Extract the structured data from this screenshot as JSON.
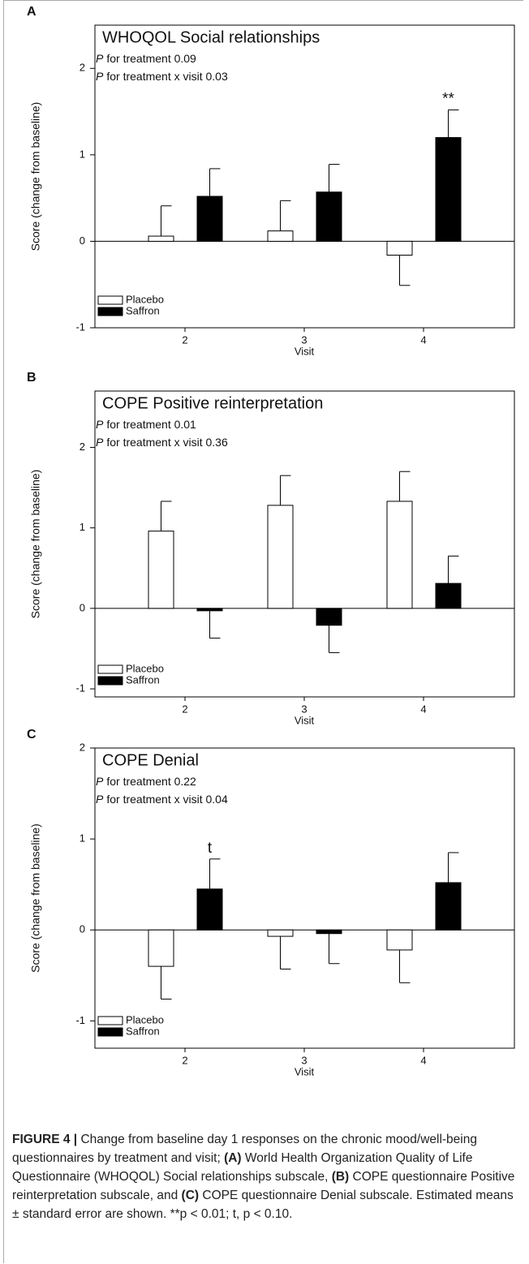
{
  "chart_data": [
    {
      "type": "bar",
      "panel": "A",
      "title": "WHOQOL Social relationships",
      "annotations": [
        {
          "symbol": "P",
          "text": "for treatment 0.09"
        },
        {
          "symbol": "P",
          "text": "for treatment x visit 0.03"
        }
      ],
      "categories": [
        "2",
        "3",
        "4"
      ],
      "x_label": "Visit",
      "y_label": "Score (change from baseline)",
      "ylim": [
        -1,
        2.5
      ],
      "yticks": [
        -1,
        0,
        1,
        2
      ],
      "legend": "lower left",
      "series": [
        {
          "name": "Placebo",
          "color": "#ffffff",
          "values": [
            0.06,
            0.12,
            -0.16
          ],
          "errors": [
            0.35,
            0.35,
            0.35
          ],
          "significance": [
            null,
            null,
            null
          ]
        },
        {
          "name": "Saffron",
          "color": "#000000",
          "values": [
            0.52,
            0.57,
            1.2
          ],
          "errors": [
            0.32,
            0.32,
            0.32
          ],
          "significance": [
            null,
            null,
            "**"
          ]
        }
      ]
    },
    {
      "type": "bar",
      "panel": "B",
      "title": "COPE Positive reinterpretation",
      "annotations": [
        {
          "symbol": "P",
          "text": "for treatment 0.01"
        },
        {
          "symbol": "P",
          "text": "for treatment x visit 0.36"
        }
      ],
      "categories": [
        "2",
        "3",
        "4"
      ],
      "x_label": "Visit",
      "y_label": "Score (change from baseline)",
      "ylim": [
        -1.1,
        2.7
      ],
      "yticks": [
        -1,
        0,
        1,
        2
      ],
      "legend": "lower left",
      "series": [
        {
          "name": "Placebo",
          "color": "#ffffff",
          "values": [
            0.96,
            1.28,
            1.33
          ],
          "errors": [
            0.37,
            0.37,
            0.37
          ],
          "significance": [
            null,
            null,
            null
          ]
        },
        {
          "name": "Saffron",
          "color": "#000000",
          "values": [
            -0.03,
            -0.21,
            0.31
          ],
          "errors": [
            0.34,
            0.34,
            0.34
          ],
          "significance": [
            null,
            null,
            null
          ]
        }
      ]
    },
    {
      "type": "bar",
      "panel": "C",
      "title": "COPE Denial",
      "annotations": [
        {
          "symbol": "P",
          "text": "for treatment 0.22"
        },
        {
          "symbol": "P",
          "text": "for treatment x visit 0.04"
        }
      ],
      "categories": [
        "2",
        "3",
        "4"
      ],
      "x_label": "Visit",
      "y_label": "Score (change from baseline)",
      "ylim": [
        -1.3,
        2
      ],
      "yticks": [
        -1,
        0,
        1,
        2
      ],
      "legend": "lower left",
      "series": [
        {
          "name": "Placebo",
          "color": "#ffffff",
          "values": [
            -0.4,
            -0.07,
            -0.22
          ],
          "errors": [
            0.36,
            0.36,
            0.36
          ],
          "significance": [
            null,
            null,
            null
          ]
        },
        {
          "name": "Saffron",
          "color": "#000000",
          "values": [
            0.45,
            -0.04,
            0.52
          ],
          "errors": [
            0.33,
            0.33,
            0.33
          ],
          "significance": [
            "t",
            null,
            null
          ]
        }
      ]
    }
  ],
  "caption": [
    {
      "text": "FIGURE 4 |",
      "bold": true
    },
    {
      "text": " Change from baseline day 1 responses on the chronic mood/well-being questionnaires by treatment and visit; ",
      "bold": false
    },
    {
      "text": "(A)",
      "bold": true
    },
    {
      "text": " World Health Organization Quality of Life Questionnaire (WHOQOL) Social relationships subscale, ",
      "bold": false
    },
    {
      "text": "(B)",
      "bold": true
    },
    {
      "text": " COPE questionnaire Positive reinterpretation subscale, and ",
      "bold": false
    },
    {
      "text": "(C)",
      "bold": true
    },
    {
      "text": " COPE questionnaire Denial subscale. Estimated means ± standard error are shown. **p < 0.01; t, p < 0.10.",
      "bold": false
    }
  ]
}
